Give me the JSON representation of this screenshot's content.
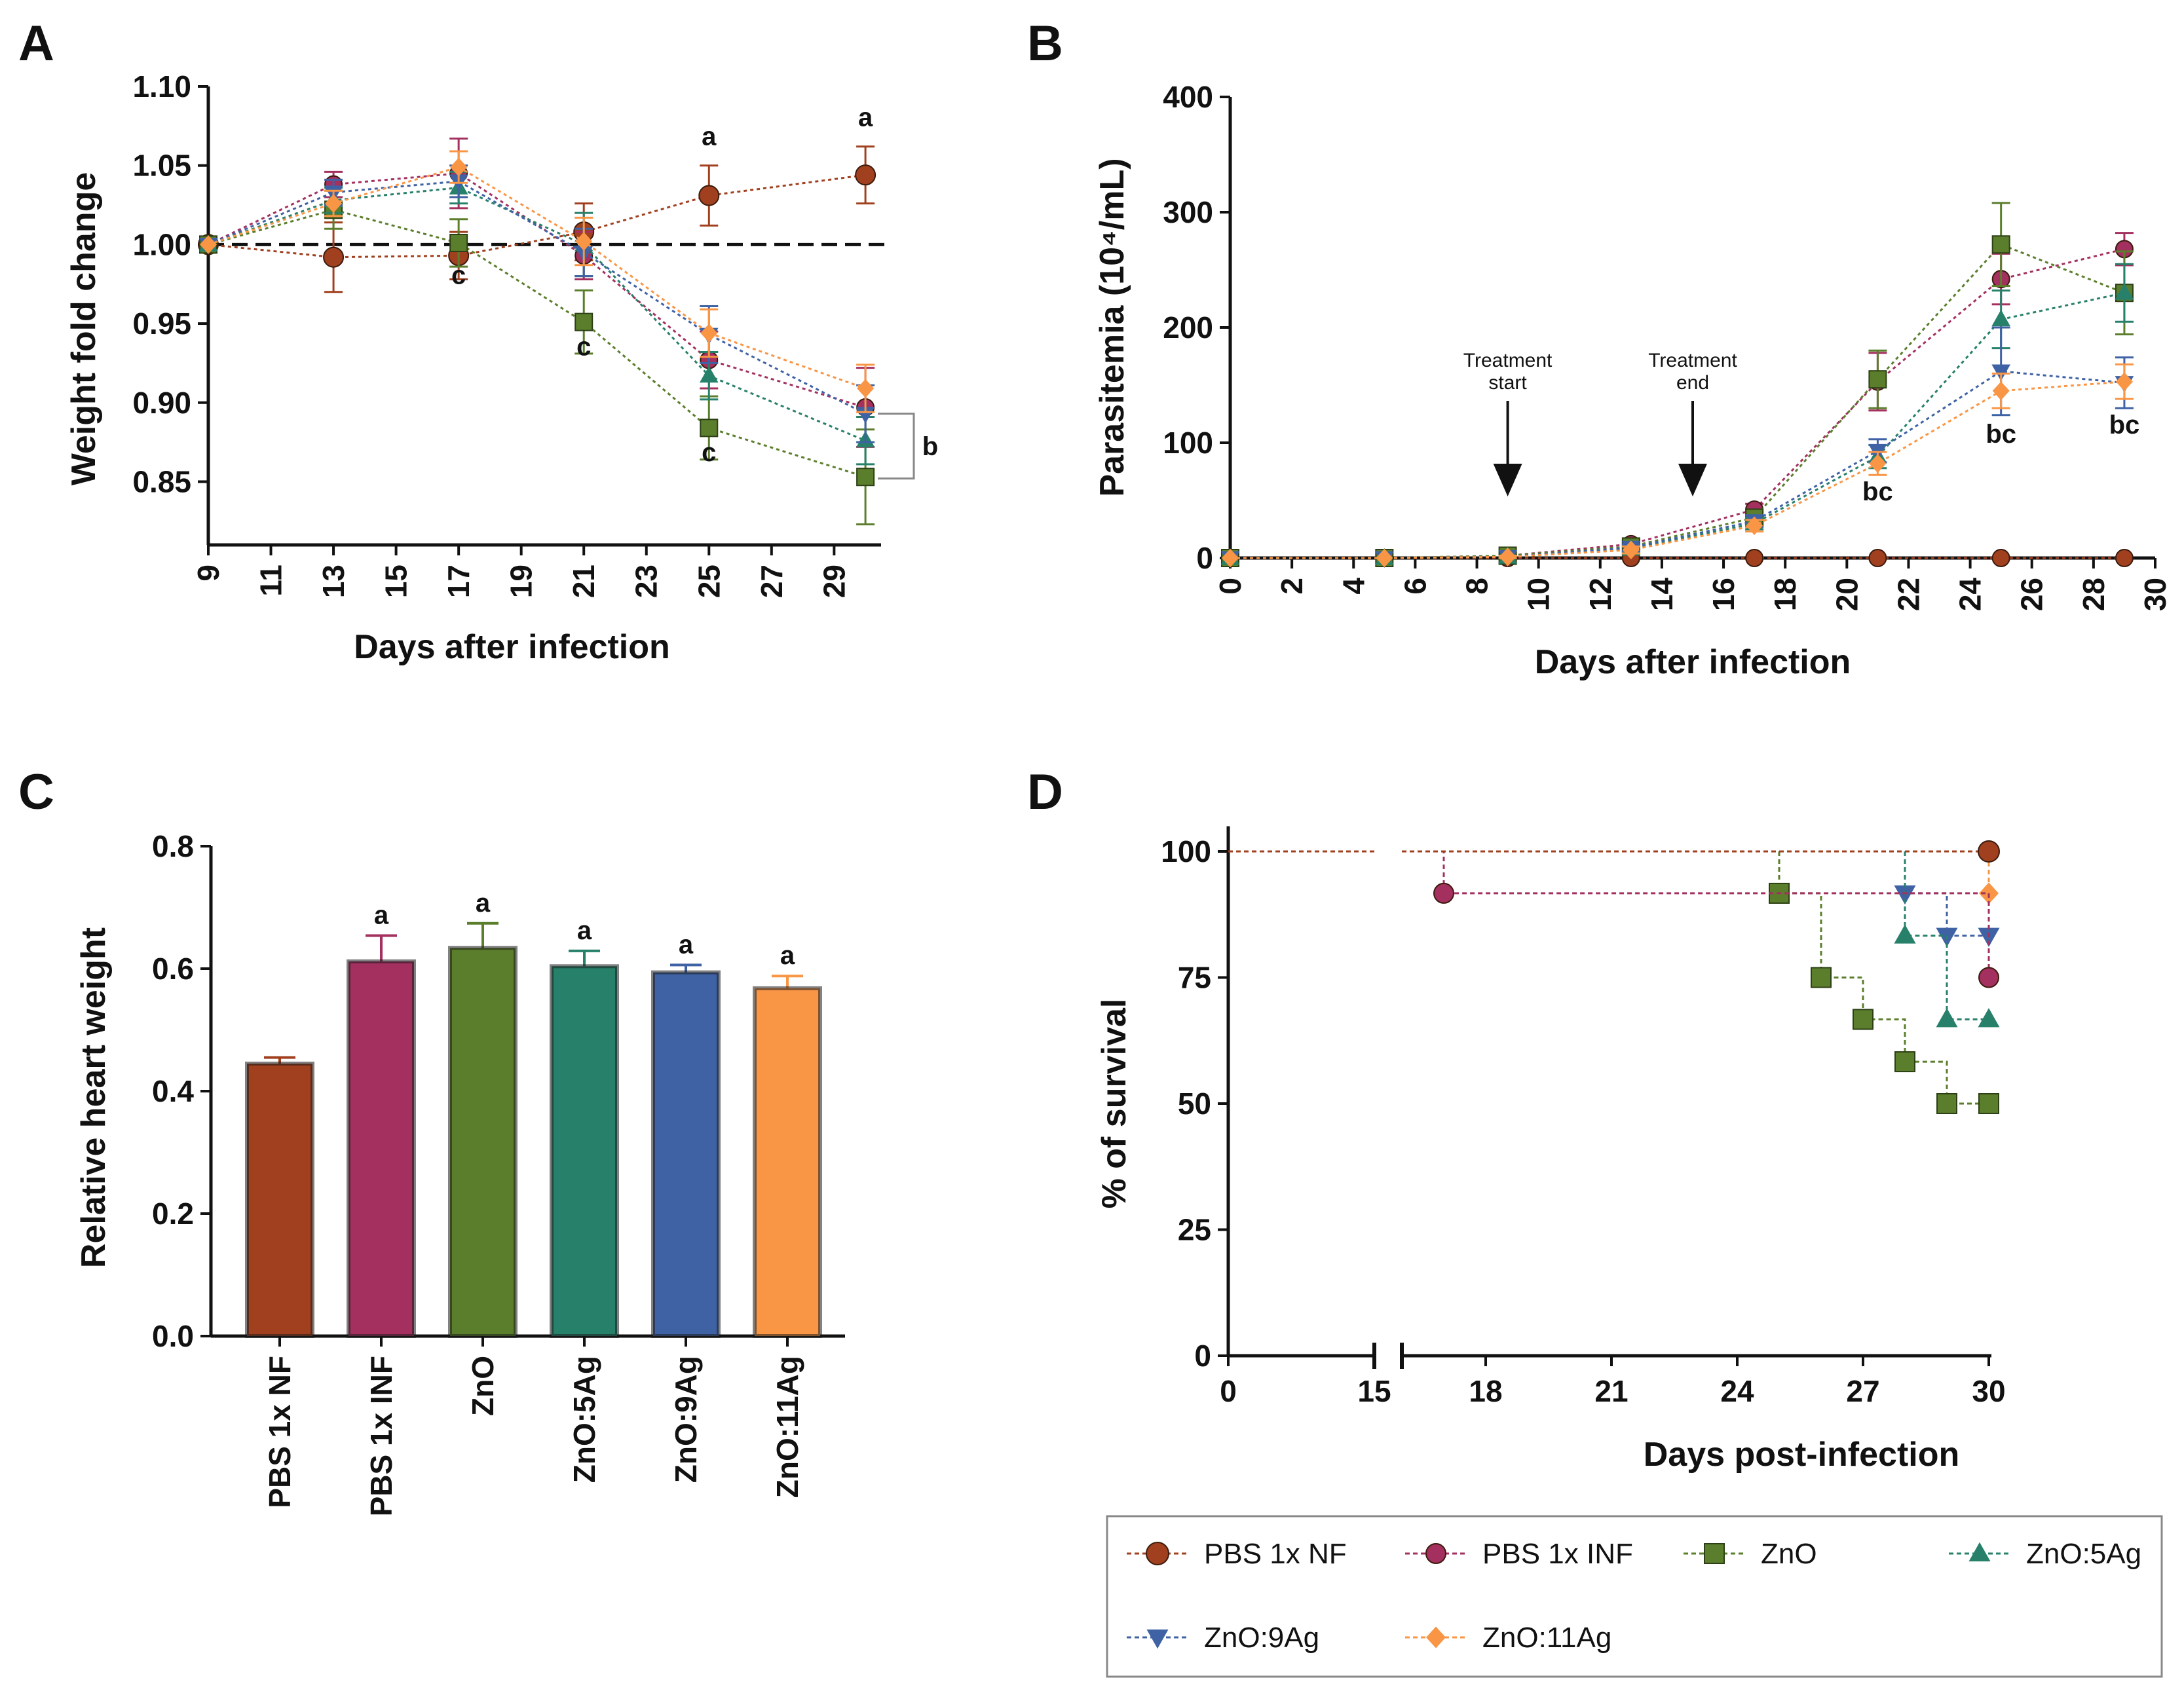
{
  "colors": {
    "PBS 1x NF": "#a0401f",
    "PBS 1x INF": "#a3305f",
    "ZnO": "#5b7e2c",
    "ZnO:5Ag": "#27806a",
    "ZnO:9Ag": "#3f62a5",
    "ZnO:11Ag": "#f99646"
  },
  "legend": {
    "items": [
      {
        "label": "PBS 1x NF",
        "marker": "circle",
        "color_key": "PBS 1x NF"
      },
      {
        "label": "PBS 1x INF",
        "marker": "circle",
        "color_key": "PBS 1x INF"
      },
      {
        "label": "ZnO",
        "marker": "square",
        "color_key": "ZnO"
      },
      {
        "label": "ZnO:5Ag",
        "marker": "triangle-up",
        "color_key": "ZnO:5Ag"
      },
      {
        "label": "ZnO:9Ag",
        "marker": "triangle-down",
        "color_key": "ZnO:9Ag"
      },
      {
        "label": "ZnO:11Ag",
        "marker": "diamond",
        "color_key": "ZnO:11Ag"
      }
    ]
  },
  "chart_data": [
    {
      "panel": "A",
      "type": "line",
      "xlabel": "Days after infection",
      "ylabel": "Weight fold change",
      "xlim": [
        9,
        30.5
      ],
      "ylim": [
        0.81,
        1.1
      ],
      "xticks": [
        9,
        11,
        13,
        15,
        17,
        19,
        21,
        23,
        25,
        27,
        29
      ],
      "yticks": [
        0.85,
        0.9,
        0.95,
        1.0,
        1.05,
        1.1
      ],
      "yticklabels": [
        "0.85",
        "0.90",
        "0.95",
        "1.00",
        "1.05",
        "1.10"
      ],
      "reference_line": {
        "y": 1.0,
        "style": "dashed"
      },
      "x": [
        9,
        13,
        17,
        21,
        25,
        30
      ],
      "series": [
        {
          "name": "PBS 1x NF",
          "marker": "circle",
          "values": [
            1.0,
            0.992,
            0.993,
            1.008,
            1.031,
            1.044
          ],
          "errors": [
            0,
            0.022,
            0.015,
            0.018,
            0.019,
            0.018
          ]
        },
        {
          "name": "PBS 1x INF",
          "marker": "circle",
          "values": [
            1.0,
            1.038,
            1.045,
            0.993,
            0.927,
            0.897
          ],
          "errors": [
            0,
            0.008,
            0.022,
            0.015,
            0.018,
            0.025
          ]
        },
        {
          "name": "ZnO",
          "marker": "square",
          "values": [
            1.0,
            1.022,
            1.001,
            0.951,
            0.884,
            0.853
          ],
          "errors": [
            0,
            0.012,
            0.015,
            0.02,
            0.02,
            0.03
          ]
        },
        {
          "name": "ZnO:5Ag",
          "marker": "triangle-up",
          "values": [
            1.0,
            1.028,
            1.036,
            1.0,
            0.917,
            0.876
          ],
          "errors": [
            0,
            0.008,
            0.01,
            0.02,
            0.015,
            0.015
          ]
        },
        {
          "name": "ZnO:9Ag",
          "marker": "triangle-down",
          "values": [
            1.0,
            1.033,
            1.04,
            0.995,
            0.943,
            0.893
          ],
          "errors": [
            0,
            0.008,
            0.01,
            0.015,
            0.018,
            0.018
          ]
        },
        {
          "name": "ZnO:11Ag",
          "marker": "diamond",
          "values": [
            1.0,
            1.026,
            1.049,
            1.002,
            0.944,
            0.909
          ],
          "errors": [
            0,
            0.008,
            0.01,
            0.015,
            0.015,
            0.015
          ]
        }
      ],
      "annotations": [
        {
          "text": "a",
          "x": 25,
          "y": 1.063
        },
        {
          "text": "a",
          "x": 30,
          "y": 1.075
        },
        {
          "text": "c",
          "x": 17,
          "y": 0.975
        },
        {
          "text": "c",
          "x": 21,
          "y": 0.93
        },
        {
          "text": "c",
          "x": 25,
          "y": 0.863
        }
      ],
      "bracket": {
        "text": "b",
        "y_top": 0.893,
        "y_bottom": 0.852
      }
    },
    {
      "panel": "B",
      "type": "line",
      "xlabel": "Days after infection",
      "ylabel": "Parasitemia (10⁴/mL)",
      "xlim": [
        0,
        30
      ],
      "ylim": [
        0,
        400
      ],
      "xticks": [
        0,
        2,
        4,
        6,
        8,
        10,
        12,
        14,
        16,
        18,
        20,
        22,
        24,
        26,
        28,
        30
      ],
      "yticks": [
        0,
        100,
        200,
        300,
        400
      ],
      "x": [
        0,
        5,
        9,
        13,
        17,
        21,
        25,
        29
      ],
      "series": [
        {
          "name": "PBS 1x NF",
          "marker": "circle",
          "values": [
            0,
            0,
            0,
            0,
            0,
            0,
            0,
            0
          ],
          "errors": [
            0,
            0,
            0,
            0,
            0,
            0,
            0,
            0
          ]
        },
        {
          "name": "PBS 1x INF",
          "marker": "circle",
          "values": [
            0,
            0,
            2,
            12,
            42,
            153,
            242,
            268
          ],
          "errors": [
            0,
            0,
            1,
            3,
            5,
            25,
            22,
            14
          ]
        },
        {
          "name": "ZnO",
          "marker": "square",
          "values": [
            0,
            0,
            2,
            10,
            35,
            155,
            272,
            230
          ],
          "errors": [
            0,
            0,
            1,
            3,
            5,
            25,
            36,
            36
          ]
        },
        {
          "name": "ZnO:5Ag",
          "marker": "triangle-up",
          "values": [
            0,
            0,
            1,
            8,
            30,
            88,
            207,
            230
          ],
          "errors": [
            0,
            0,
            1,
            3,
            5,
            10,
            25,
            25
          ]
        },
        {
          "name": "ZnO:9Ag",
          "marker": "triangle-down",
          "values": [
            0,
            0,
            1,
            9,
            32,
            93,
            162,
            152
          ],
          "errors": [
            0,
            0,
            1,
            3,
            5,
            10,
            38,
            22
          ]
        },
        {
          "name": "ZnO:11Ag",
          "marker": "diamond",
          "values": [
            0,
            0,
            1,
            7,
            28,
            82,
            145,
            153
          ],
          "errors": [
            0,
            0,
            1,
            3,
            5,
            10,
            15,
            15
          ]
        }
      ],
      "annotations": [
        {
          "text": "bc",
          "x": 21,
          "y": 50
        },
        {
          "text": "bc",
          "x": 25,
          "y": 100
        },
        {
          "text": "bc",
          "x": 29,
          "y": 108
        }
      ],
      "arrows": [
        {
          "label_line1": "Treatment",
          "label_line2": "start",
          "x": 9
        },
        {
          "label_line1": "Treatment",
          "label_line2": "end",
          "x": 15
        }
      ]
    },
    {
      "panel": "C",
      "type": "bar",
      "ylabel": "Relative heart weight",
      "ylim": [
        0,
        0.8
      ],
      "yticks": [
        0.0,
        0.2,
        0.4,
        0.6,
        0.8
      ],
      "yticklabels": [
        "0.0",
        "0.2",
        "0.4",
        "0.6",
        "0.8"
      ],
      "categories": [
        "PBS 1x NF",
        "PBS 1x INF",
        "ZnO",
        "ZnO:5Ag",
        "ZnO:9Ag",
        "ZnO:11Ag"
      ],
      "values": [
        0.445,
        0.612,
        0.634,
        0.604,
        0.594,
        0.568
      ],
      "errors": [
        0.01,
        0.042,
        0.04,
        0.025,
        0.012,
        0.02
      ],
      "significance": [
        "",
        "a",
        "a",
        "a",
        "a",
        "a"
      ]
    },
    {
      "panel": "D",
      "type": "line",
      "step": true,
      "xlabel": "Days post-infection",
      "ylabel": "% of survival",
      "ylim": [
        0,
        100
      ],
      "yticks": [
        0,
        25,
        50,
        75,
        100
      ],
      "xticks": [
        0,
        15,
        18,
        21,
        24,
        27,
        30
      ],
      "axis_break_after": 15,
      "series": [
        {
          "name": "PBS 1x NF",
          "marker": "circle",
          "steps": [
            [
              0,
              100
            ],
            [
              30,
              100
            ]
          ],
          "points": [
            [
              30,
              100
            ]
          ]
        },
        {
          "name": "PBS 1x INF",
          "marker": "circle",
          "steps": [
            [
              0,
              100
            ],
            [
              17,
              100
            ],
            [
              17,
              91.7
            ],
            [
              30,
              91.7
            ],
            [
              30,
              75
            ]
          ],
          "points": [
            [
              17,
              91.7
            ],
            [
              30,
              75
            ]
          ]
        },
        {
          "name": "ZnO",
          "marker": "square",
          "steps": [
            [
              0,
              100
            ],
            [
              25,
              100
            ],
            [
              25,
              91.7
            ],
            [
              26,
              91.7
            ],
            [
              26,
              75
            ],
            [
              27,
              75
            ],
            [
              27,
              66.7
            ],
            [
              28,
              66.7
            ],
            [
              28,
              58.3
            ],
            [
              29,
              58.3
            ],
            [
              29,
              50
            ],
            [
              30,
              50
            ]
          ],
          "points": [
            [
              25,
              91.7
            ],
            [
              26,
              75
            ],
            [
              27,
              66.7
            ],
            [
              28,
              58.3
            ],
            [
              29,
              50
            ],
            [
              30,
              50
            ]
          ]
        },
        {
          "name": "ZnO:5Ag",
          "marker": "triangle-up",
          "steps": [
            [
              0,
              100
            ],
            [
              28,
              100
            ],
            [
              28,
              83.3
            ],
            [
              29,
              83.3
            ],
            [
              29,
              66.7
            ],
            [
              30,
              66.7
            ]
          ],
          "points": [
            [
              28,
              83.3
            ],
            [
              29,
              66.7
            ],
            [
              30,
              66.7
            ]
          ]
        },
        {
          "name": "ZnO:9Ag",
          "marker": "triangle-down",
          "steps": [
            [
              0,
              100
            ],
            [
              28,
              100
            ],
            [
              28,
              91.7
            ],
            [
              29,
              91.7
            ],
            [
              29,
              83.3
            ],
            [
              30,
              83.3
            ]
          ],
          "points": [
            [
              28,
              91.7
            ],
            [
              29,
              83.3
            ],
            [
              30,
              83.3
            ]
          ]
        },
        {
          "name": "ZnO:11Ag",
          "marker": "diamond",
          "steps": [
            [
              0,
              100
            ],
            [
              30,
              100
            ],
            [
              30,
              91.7
            ]
          ],
          "points": [
            [
              30,
              91.7
            ]
          ]
        }
      ]
    }
  ]
}
